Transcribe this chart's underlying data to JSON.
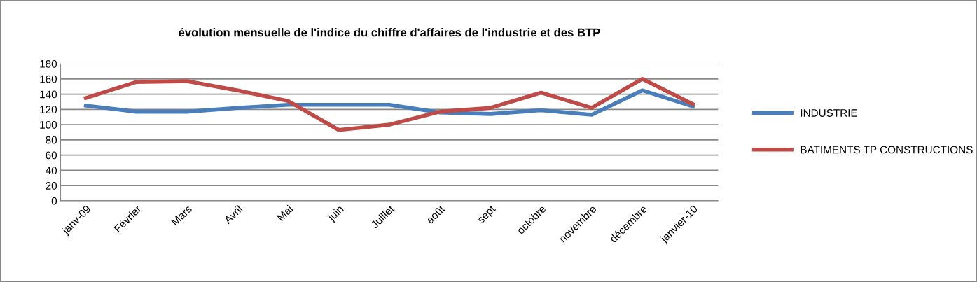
{
  "chart_data": {
    "type": "line",
    "title": "évolution mensuelle de l'indice du chiffre d'affaires de l'industrie et des BTP",
    "categories": [
      "janv-09",
      "Février",
      "Mars",
      "Avril",
      "Mai",
      "juin",
      "Juillet",
      "août",
      "sept",
      "octobre",
      "novembre",
      "décembre",
      "janvier-10"
    ],
    "series": [
      {
        "name": "INDUSTRIE",
        "color": "#4a7ebb",
        "values": [
          125,
          117,
          117,
          122,
          126,
          126,
          126,
          116,
          114,
          119,
          113,
          145,
          124
        ]
      },
      {
        "name": "BATIMENTS TP CONSTRUCTIONS",
        "color": "#be4b48",
        "values": [
          135,
          156,
          157,
          145,
          131,
          93,
          100,
          117,
          122,
          142,
          122,
          160,
          127
        ]
      }
    ],
    "ylim": [
      0,
      180
    ],
    "yticks": [
      0,
      20,
      40,
      60,
      80,
      100,
      120,
      140,
      160,
      180
    ],
    "grid": "y",
    "legend": "right",
    "marker": "none",
    "line_style": "solid"
  }
}
